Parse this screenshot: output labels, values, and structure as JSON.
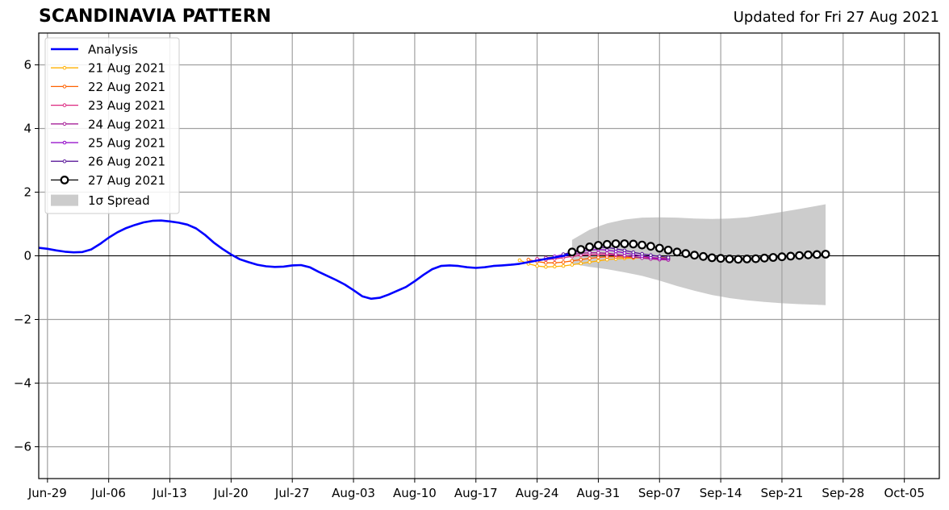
{
  "header": {
    "title": "SCANDINAVIA PATTERN",
    "updated": "Updated for Fri 27 Aug 2021"
  },
  "chart_data": {
    "type": "line",
    "title": "SCANDINAVIA PATTERN",
    "subtitle": "Updated for Fri 27 Aug 2021",
    "xlabel": "",
    "ylabel": "",
    "x_axis_type": "date",
    "xlim": [
      "2021-06-28",
      "2021-10-09"
    ],
    "ylim": [
      -7,
      7
    ],
    "grid": true,
    "legend_position": "top-left",
    "xticks": [
      {
        "date": "2021-06-29",
        "label": "Jun-29"
      },
      {
        "date": "2021-07-06",
        "label": "Jul-06"
      },
      {
        "date": "2021-07-13",
        "label": "Jul-13"
      },
      {
        "date": "2021-07-20",
        "label": "Jul-20"
      },
      {
        "date": "2021-07-27",
        "label": "Jul-27"
      },
      {
        "date": "2021-08-03",
        "label": "Aug-03"
      },
      {
        "date": "2021-08-10",
        "label": "Aug-10"
      },
      {
        "date": "2021-08-17",
        "label": "Aug-17"
      },
      {
        "date": "2021-08-24",
        "label": "Aug-24"
      },
      {
        "date": "2021-08-31",
        "label": "Aug-31"
      },
      {
        "date": "2021-09-07",
        "label": "Sep-07"
      },
      {
        "date": "2021-09-14",
        "label": "Sep-14"
      },
      {
        "date": "2021-09-21",
        "label": "Sep-21"
      },
      {
        "date": "2021-09-28",
        "label": "Sep-28"
      },
      {
        "date": "2021-10-05",
        "label": "Oct-05"
      }
    ],
    "yticks": [
      {
        "value": -6,
        "label": "−6"
      },
      {
        "value": -4,
        "label": "−4"
      },
      {
        "value": -2,
        "label": "−2"
      },
      {
        "value": 0,
        "label": "0"
      },
      {
        "value": 2,
        "label": "2"
      },
      {
        "value": 4,
        "label": "4"
      },
      {
        "value": 6,
        "label": "6"
      }
    ],
    "analysis": {
      "name": "Analysis",
      "color": "#0000ff",
      "start_date": "2021-06-28",
      "values": [
        0.25,
        0.22,
        0.17,
        0.13,
        0.11,
        0.12,
        0.2,
        0.37,
        0.57,
        0.74,
        0.87,
        0.97,
        1.05,
        1.1,
        1.11,
        1.08,
        1.04,
        0.98,
        0.86,
        0.66,
        0.42,
        0.22,
        0.04,
        -0.11,
        -0.2,
        -0.28,
        -0.33,
        -0.35,
        -0.34,
        -0.3,
        -0.29,
        -0.36,
        -0.5,
        -0.63,
        -0.76,
        -0.9,
        -1.08,
        -1.27,
        -1.35,
        -1.32,
        -1.22,
        -1.1,
        -0.98,
        -0.8,
        -0.6,
        -0.42,
        -0.32,
        -0.3,
        -0.32,
        -0.36,
        -0.38,
        -0.36,
        -0.32,
        -0.3,
        -0.28,
        -0.25,
        -0.2,
        -0.15,
        -0.1,
        -0.05,
        0.0,
        0.08
      ]
    },
    "series": [
      {
        "name": "21 Aug 2021",
        "color": "#ffb000",
        "start_date": "2021-08-22",
        "values": [
          -0.14,
          -0.25,
          -0.32,
          -0.35,
          -0.34,
          -0.32,
          -0.28,
          -0.24,
          -0.2,
          -0.16,
          -0.12,
          -0.1,
          -0.08,
          -0.07,
          -0.06,
          -0.06,
          -0.06,
          -0.07
        ]
      },
      {
        "name": "22 Aug 2021",
        "color": "#fe6100",
        "start_date": "2021-08-23",
        "values": [
          -0.12,
          -0.18,
          -0.22,
          -0.22,
          -0.2,
          -0.16,
          -0.12,
          -0.08,
          -0.05,
          -0.03,
          -0.03,
          -0.04,
          -0.05,
          -0.06,
          -0.07,
          -0.08,
          -0.09
        ]
      },
      {
        "name": "23 Aug 2021",
        "color": "#dc267f",
        "start_date": "2021-08-24",
        "values": [
          -0.1,
          -0.12,
          -0.1,
          -0.06,
          -0.02,
          0.02,
          0.04,
          0.05,
          0.04,
          0.02,
          0.0,
          -0.03,
          -0.06,
          -0.08,
          -0.1,
          -0.11
        ]
      },
      {
        "name": "24 Aug 2021",
        "color": "#a62098",
        "start_date": "2021-08-25",
        "values": [
          -0.06,
          -0.04,
          0.0,
          0.04,
          0.08,
          0.1,
          0.1,
          0.08,
          0.05,
          0.01,
          -0.03,
          -0.07,
          -0.1,
          -0.12,
          -0.13
        ]
      },
      {
        "name": "25 Aug 2021",
        "color": "#8f00c7",
        "start_date": "2021-08-26",
        "values": [
          -0.02,
          0.04,
          0.1,
          0.15,
          0.18,
          0.2,
          0.18,
          0.14,
          0.09,
          0.04,
          -0.01,
          -0.05,
          -0.08,
          -0.09
        ]
      },
      {
        "name": "26 Aug 2021",
        "color": "#5a189a",
        "start_date": "2021-08-27",
        "values": [
          0.05,
          0.12,
          0.2,
          0.25,
          0.27,
          0.26,
          0.22,
          0.17,
          0.11,
          0.06,
          0.02,
          -0.02,
          -0.05
        ]
      },
      {
        "name": "27 Aug 2021",
        "color": "#000000",
        "start_date": "2021-08-28",
        "values": [
          0.12,
          0.2,
          0.28,
          0.33,
          0.36,
          0.38,
          0.38,
          0.37,
          0.34,
          0.3,
          0.24,
          0.18,
          0.12,
          0.07,
          0.02,
          -0.02,
          -0.06,
          -0.08,
          -0.1,
          -0.11,
          -0.1,
          -0.09,
          -0.07,
          -0.05,
          -0.03,
          -0.01,
          0.01,
          0.03,
          0.04,
          0.05
        ]
      }
    ],
    "spread": {
      "name": "1σ Spread",
      "color": "#cccccc",
      "points": [
        {
          "date": "2021-08-28",
          "lower": -0.25,
          "upper": 0.5
        },
        {
          "date": "2021-08-30",
          "lower": -0.35,
          "upper": 0.82
        },
        {
          "date": "2021-09-01",
          "lower": -0.42,
          "upper": 1.02
        },
        {
          "date": "2021-09-03",
          "lower": -0.52,
          "upper": 1.14
        },
        {
          "date": "2021-09-05",
          "lower": -0.63,
          "upper": 1.2
        },
        {
          "date": "2021-09-07",
          "lower": -0.78,
          "upper": 1.21
        },
        {
          "date": "2021-09-09",
          "lower": -0.95,
          "upper": 1.2
        },
        {
          "date": "2021-09-11",
          "lower": -1.1,
          "upper": 1.17
        },
        {
          "date": "2021-09-13",
          "lower": -1.23,
          "upper": 1.16
        },
        {
          "date": "2021-09-15",
          "lower": -1.33,
          "upper": 1.17
        },
        {
          "date": "2021-09-17",
          "lower": -1.4,
          "upper": 1.21
        },
        {
          "date": "2021-09-19",
          "lower": -1.45,
          "upper": 1.29
        },
        {
          "date": "2021-09-21",
          "lower": -1.49,
          "upper": 1.38
        },
        {
          "date": "2021-09-23",
          "lower": -1.52,
          "upper": 1.47
        },
        {
          "date": "2021-09-25",
          "lower": -1.54,
          "upper": 1.57
        },
        {
          "date": "2021-09-26",
          "lower": -1.55,
          "upper": 1.62
        }
      ]
    }
  }
}
